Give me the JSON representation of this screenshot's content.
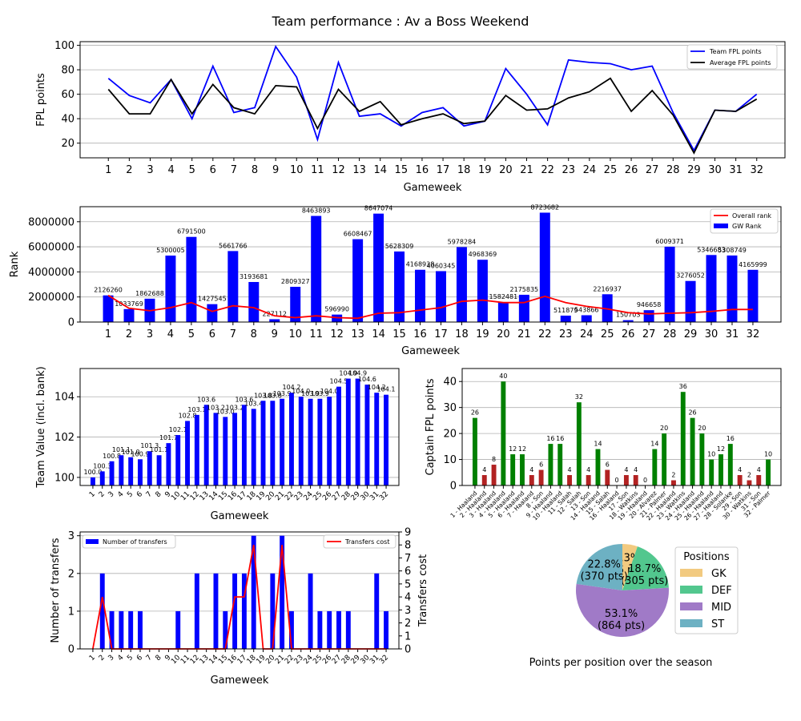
{
  "page": {
    "title": "Team performance : Av a Boss Weekend"
  },
  "colors": {
    "team_line": "#0000ff",
    "avg_line": "#000000",
    "rank_bar": "#0000ff",
    "overall_line": "#ff0000",
    "value_bar": "#0000ff",
    "captain_high": "#008000",
    "captain_low": "#b22222",
    "transfer_bar": "#0000ff",
    "cost_line": "#ff0000",
    "gk": "#f2ca80",
    "def": "#52c78e",
    "mid": "#a07ac7",
    "st": "#6db1c3"
  },
  "chart_data": [
    {
      "id": "points",
      "type": "line",
      "xlabel": "Gameweek",
      "ylabel": "FPL points",
      "x": [
        1,
        2,
        3,
        4,
        5,
        6,
        7,
        8,
        9,
        10,
        11,
        12,
        13,
        14,
        15,
        16,
        17,
        18,
        19,
        20,
        21,
        22,
        23,
        24,
        25,
        26,
        27,
        28,
        29,
        30,
        31,
        32
      ],
      "yticks": [
        20,
        40,
        60,
        80,
        100
      ],
      "ylim": [
        8,
        103
      ],
      "grid": "y",
      "legend": "upper right",
      "series": [
        {
          "name": "Team FPL points",
          "values": [
            73,
            59,
            53,
            72,
            40,
            83,
            45,
            49,
            99,
            74,
            23,
            86,
            42,
            44,
            34,
            45,
            49,
            34,
            38,
            81,
            60,
            35,
            88,
            86,
            85,
            80,
            83,
            45,
            14,
            47,
            46,
            60
          ]
        },
        {
          "name": "Average FPL points",
          "values": [
            64,
            44,
            44,
            72,
            44,
            68,
            49,
            44,
            67,
            66,
            32,
            64,
            46,
            54,
            35,
            40,
            44,
            36,
            38,
            59,
            47,
            48,
            57,
            62,
            73,
            46,
            63,
            43,
            12,
            47,
            46,
            56
          ]
        }
      ]
    },
    {
      "id": "rank",
      "type": "bar",
      "xlabel": "Gameweek",
      "ylabel": "Rank",
      "categories": [
        "1",
        "2",
        "3",
        "4",
        "5",
        "6",
        "7",
        "8",
        "9",
        "10",
        "11",
        "12",
        "13",
        "14",
        "15",
        "16",
        "17",
        "18",
        "19",
        "20",
        "21",
        "22",
        "23",
        "24",
        "25",
        "26",
        "27",
        "28",
        "29",
        "30",
        "31",
        "32"
      ],
      "yticks": [
        0,
        2000000,
        4000000,
        6000000,
        8000000
      ],
      "ytick_labels": [
        "0",
        "2000000",
        "4000000",
        "6000000",
        "8000000"
      ],
      "ylim": [
        0,
        9200000
      ],
      "grid": "y",
      "legend": "upper right",
      "series": [
        {
          "name": "GW Rank",
          "values": [
            2126260,
            1033769,
            1862688,
            5300005,
            6791500,
            1427545,
            5661766,
            3193681,
            227112,
            2809327,
            8463893,
            596990,
            6608467,
            8647074,
            5628309,
            4168938,
            4060345,
            5978284,
            4968369,
            1582481,
            2175835,
            8723682,
            511879,
            543866,
            2216937,
            150703,
            946658,
            6009371,
            3276052,
            5346683,
            5308749,
            4165999
          ]
        },
        {
          "name": "Overall rank",
          "values": [
            2126260,
            1100000,
            900000,
            1150000,
            1550000,
            850000,
            1300000,
            1150000,
            500000,
            350000,
            500000,
            350000,
            300000,
            700000,
            750000,
            950000,
            1150000,
            1650000,
            1750000,
            1550000,
            1550000,
            2050000,
            1550000,
            1250000,
            1050000,
            750000,
            650000,
            700000,
            750000,
            850000,
            1000000,
            1000000
          ]
        }
      ]
    },
    {
      "id": "value",
      "type": "bar",
      "xlabel": "Gameweek",
      "ylabel": "Team Value (incl. bank)",
      "categories": [
        "1",
        "2",
        "3",
        "4",
        "5",
        "6",
        "7",
        "8",
        "9",
        "10",
        "11",
        "12",
        "13",
        "14",
        "15",
        "16",
        "17",
        "18",
        "19",
        "20",
        "21",
        "22",
        "23",
        "24",
        "25",
        "26",
        "27",
        "28",
        "29",
        "30",
        "31",
        "32"
      ],
      "values": [
        100.0,
        100.3,
        100.8,
        101.1,
        101.0,
        100.9,
        101.3,
        101.1,
        101.7,
        102.1,
        102.8,
        103.1,
        103.6,
        103.2,
        103.0,
        103.2,
        103.6,
        103.4,
        103.8,
        103.8,
        103.9,
        104.2,
        104.0,
        103.9,
        103.9,
        104.0,
        104.5,
        104.9,
        104.9,
        104.6,
        104.2,
        104.1
      ],
      "value_labels": [
        "100.0",
        "100.3",
        "100.8",
        "101.1",
        "101.0",
        "100.9",
        "101.3",
        "101.1",
        "101.7",
        "102.1",
        "102.8",
        "103.1",
        "103.6",
        "103.2",
        "103.0",
        "103.2",
        "103.6",
        "103.4",
        "103.8",
        "103.8",
        "103.9",
        "104.2",
        "104.0",
        "103.9",
        "103.9",
        "104.0",
        "104.5",
        "104.9",
        "104.9",
        "104.6",
        "104.2",
        "104.1"
      ],
      "yticks": [
        100,
        102,
        104
      ],
      "ylim": [
        99.6,
        105.4
      ],
      "grid": "y"
    },
    {
      "id": "captain",
      "type": "bar",
      "xlabel": "",
      "ylabel": "Captain FPL points",
      "categories": [
        "1 - Haaland",
        "2 - Haaland",
        "3 - Haaland",
        "4 - Haaland",
        "5 - Haaland",
        "6 - Haaland",
        "7 - Haaland",
        "8 - Son",
        "9 - Haaland",
        "10 - Haaland",
        "11 - Salah",
        "12 - Salah",
        "13 - Son",
        "14 - Haaland",
        "15 - Salah",
        "16 - Haaland",
        "17 - Son",
        "18 - Watkins",
        "19 - Haaland",
        "20 - Alvarez",
        "21 - Palmer",
        "22 - Haaland",
        "23 - Watkins",
        "24 - Haaland",
        "25 - Haaland",
        "26 - Haaland",
        "27 - Haaland",
        "28 - Solanke",
        "29 - Son",
        "30 - Watkins",
        "31 - Son",
        "32 - Palmer"
      ],
      "values": [
        26,
        4,
        8,
        40,
        12,
        12,
        4,
        6,
        16,
        16,
        4,
        32,
        4,
        14,
        6,
        0,
        4,
        4,
        0,
        14,
        20,
        2,
        36,
        26,
        20,
        10,
        12,
        16,
        4,
        2,
        4,
        10
      ],
      "yticks": [
        0,
        10,
        20,
        30,
        40
      ],
      "ylim": [
        0,
        45
      ],
      "grid": "y",
      "threshold": 8
    },
    {
      "id": "transfers",
      "type": "bar",
      "xlabel": "Gameweek",
      "ylabel": "Number of transfers",
      "y2label": "Transfers cost",
      "categories": [
        "1",
        "2",
        "3",
        "4",
        "5",
        "6",
        "7",
        "8",
        "9",
        "10",
        "11",
        "12",
        "13",
        "14",
        "15",
        "16",
        "17",
        "18",
        "19",
        "20",
        "21",
        "22",
        "23",
        "24",
        "25",
        "26",
        "27",
        "28",
        "29",
        "30",
        "31",
        "32"
      ],
      "yticks": [
        0,
        1,
        2,
        3
      ],
      "ylim": [
        0,
        3.1
      ],
      "y2ticks": [
        0,
        1,
        2,
        3,
        4,
        5,
        6,
        7,
        8,
        9
      ],
      "y2lim": [
        0,
        9
      ],
      "grid": "y",
      "series": [
        {
          "name": "Number of transfers",
          "values": [
            0,
            2,
            1,
            1,
            1,
            1,
            0,
            0,
            0,
            1,
            0,
            2,
            0,
            2,
            1,
            2,
            2,
            3,
            0,
            2,
            3,
            1,
            0,
            2,
            1,
            1,
            1,
            1,
            0,
            0,
            2,
            1
          ]
        },
        {
          "name": "Transfers cost",
          "values": [
            0,
            4,
            0,
            0,
            0,
            0,
            0,
            0,
            0,
            0,
            0,
            0,
            0,
            0,
            0,
            4,
            4,
            8,
            0,
            0,
            8,
            0,
            0,
            0,
            0,
            0,
            0,
            0,
            0,
            0,
            0,
            0
          ]
        }
      ]
    },
    {
      "id": "positions",
      "type": "pie",
      "title": "Points per position over the season",
      "legend_title": "Positions",
      "legend": "right",
      "slices": [
        {
          "name": "GK",
          "value": 86,
          "label": "5.3%\n(86 pts)"
        },
        {
          "name": "DEF",
          "value": 305,
          "label": "18.7%\n(305 pts)"
        },
        {
          "name": "MID",
          "value": 864,
          "label": "53.1%\n(864 pts)"
        },
        {
          "name": "ST",
          "value": 370,
          "label": "22.8%\n(370 pts)"
        }
      ]
    }
  ]
}
